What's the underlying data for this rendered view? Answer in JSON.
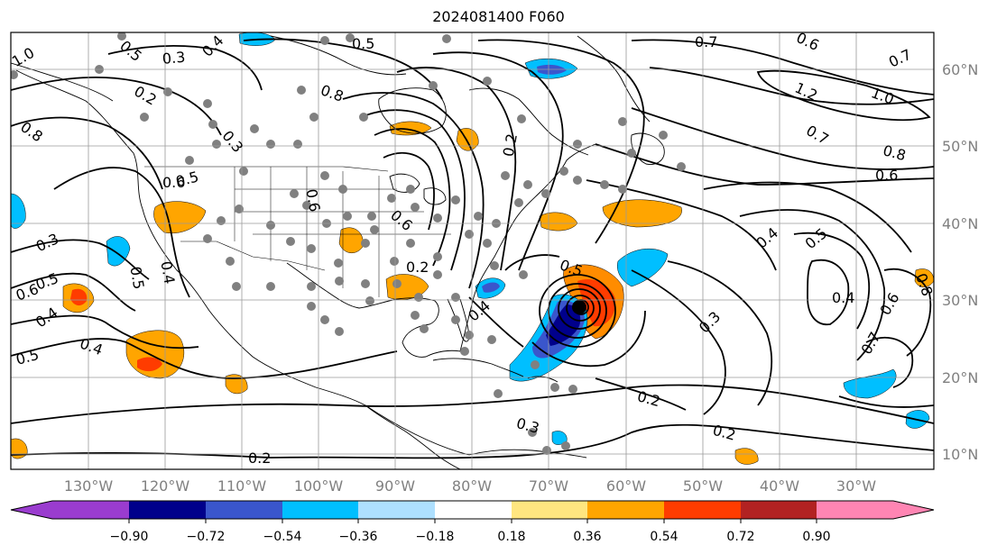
{
  "title": "2024081400 F060",
  "map": {
    "projection": "equirectangular",
    "lon_range": [
      -138,
      -18
    ],
    "lat_range": [
      7,
      65
    ],
    "grid": true,
    "lon_ticks": [
      "130°W",
      "120°W",
      "110°W",
      "100°W",
      "90°W",
      "80°W",
      "70°W",
      "60°W",
      "50°W",
      "40°W",
      "30°W"
    ],
    "lat_ticks": [
      "60°N",
      "50°N",
      "40°N",
      "30°N",
      "20°N",
      "10°N"
    ],
    "contour_labels": [
      "0.7",
      "0.6",
      "0.7",
      "1.2",
      "1.0",
      "0.8",
      "0.6",
      "0.7",
      "0.4",
      "0.5",
      "0.4",
      "0.6",
      "0.7",
      "0.3",
      "0.2",
      "0.2",
      "0.3",
      "0.2",
      "0.5",
      "0.4",
      "0.5",
      "0.6",
      "0.4",
      "0.3",
      "0.5",
      "0.4",
      "0.5",
      "0.6",
      "0.8",
      "0.3",
      "0.2",
      "0.5",
      "1.0",
      "0.5",
      "0.3",
      "0.4",
      "0.8",
      "0.6",
      "0.2",
      "0.4",
      "0.5",
      "0.2",
      "0.6",
      "0.8"
    ],
    "storm_marker": "black-dot",
    "station_marker": "gray-dot"
  },
  "colorbar": {
    "ticks": [
      "−0.90",
      "−0.72",
      "−0.54",
      "−0.36",
      "−0.18",
      "0.18",
      "0.36",
      "0.54",
      "0.72",
      "0.90"
    ],
    "colors": [
      "#9a3ccf",
      "#00008b",
      "#3a56cc",
      "#00bfff",
      "#aee0ff",
      "#ffffff",
      "#ffe680",
      "#ffa500",
      "#ff3c00",
      "#b22222",
      "#ff85b3"
    ]
  }
}
